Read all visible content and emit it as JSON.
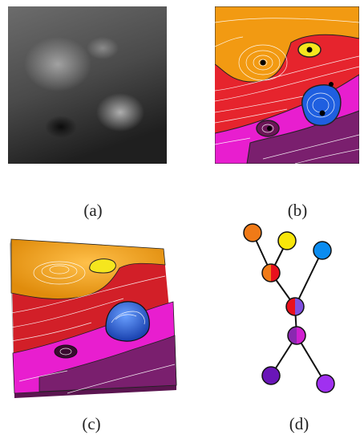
{
  "captions": {
    "a": "(a)",
    "b": "(b)",
    "c": "(c)",
    "d": "(d)"
  },
  "colors": {
    "orange": "#f29a12",
    "yellow": "#f5e61e",
    "red": "#e6242d",
    "magenta": "#e81ecf",
    "purple": "#7a1f6e",
    "blue": "#1f5fe0",
    "graph_red": "#e8101d",
    "graph_orange": "#f07a17",
    "graph_yellow": "#f8e60a",
    "graph_blue": "#0a8cf0",
    "graph_violet": "#6a16b8",
    "graph_lilac": "#a030f0",
    "graph_magenta": "#c020c8"
  }
}
